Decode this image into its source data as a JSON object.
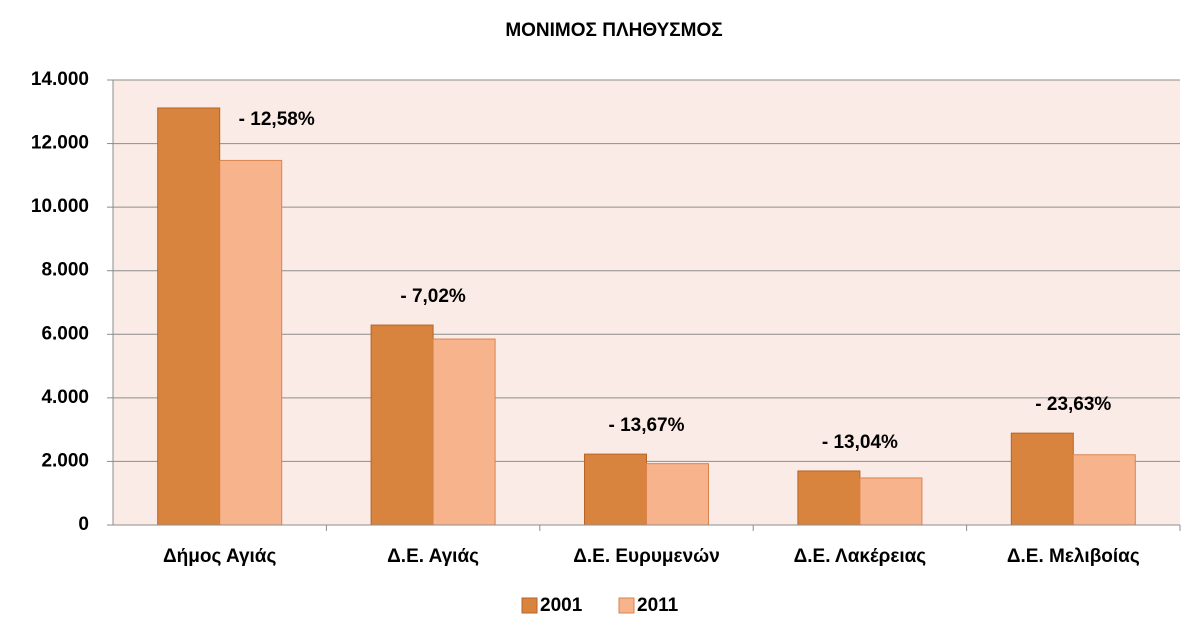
{
  "chart_data": {
    "type": "bar",
    "title": "ΜΟΝΙΜΟΣ ΠΛΗΘΥΣΜΟΣ",
    "categories": [
      "Δήμος Αγιάς",
      "Δ.Ε. Αγιάς",
      "Δ.Ε. Ευρυμενών",
      "Δ.Ε. Λακέρειας",
      "Δ.Ε. Μελιβοίας"
    ],
    "series": [
      {
        "name": "2001",
        "color": "#d9843e",
        "values": [
          13120,
          6290,
          2230,
          1700,
          2890
        ]
      },
      {
        "name": "2011",
        "color": "#f7b48c",
        "values": [
          11470,
          5850,
          1930,
          1480,
          2210
        ]
      }
    ],
    "annotations": [
      "- 12,58%",
      "- 7,02%",
      "- 13,67%",
      "- 13,04%",
      "- 23,63%"
    ],
    "ylim": [
      0,
      14000
    ],
    "yticks": [
      0,
      {
        "value": 2000,
        "label": "2.000"
      },
      {
        "value": 4000,
        "label": "4.000"
      },
      {
        "value": 6000,
        "label": "6.000"
      },
      {
        "value": 8000,
        "label": "8.000"
      },
      {
        "value": 10000,
        "label": "10.000"
      },
      {
        "value": 12000,
        "label": "12.000"
      },
      {
        "value": 14000,
        "label": "14.000"
      }
    ],
    "grid": true,
    "legend": "bottom"
  }
}
